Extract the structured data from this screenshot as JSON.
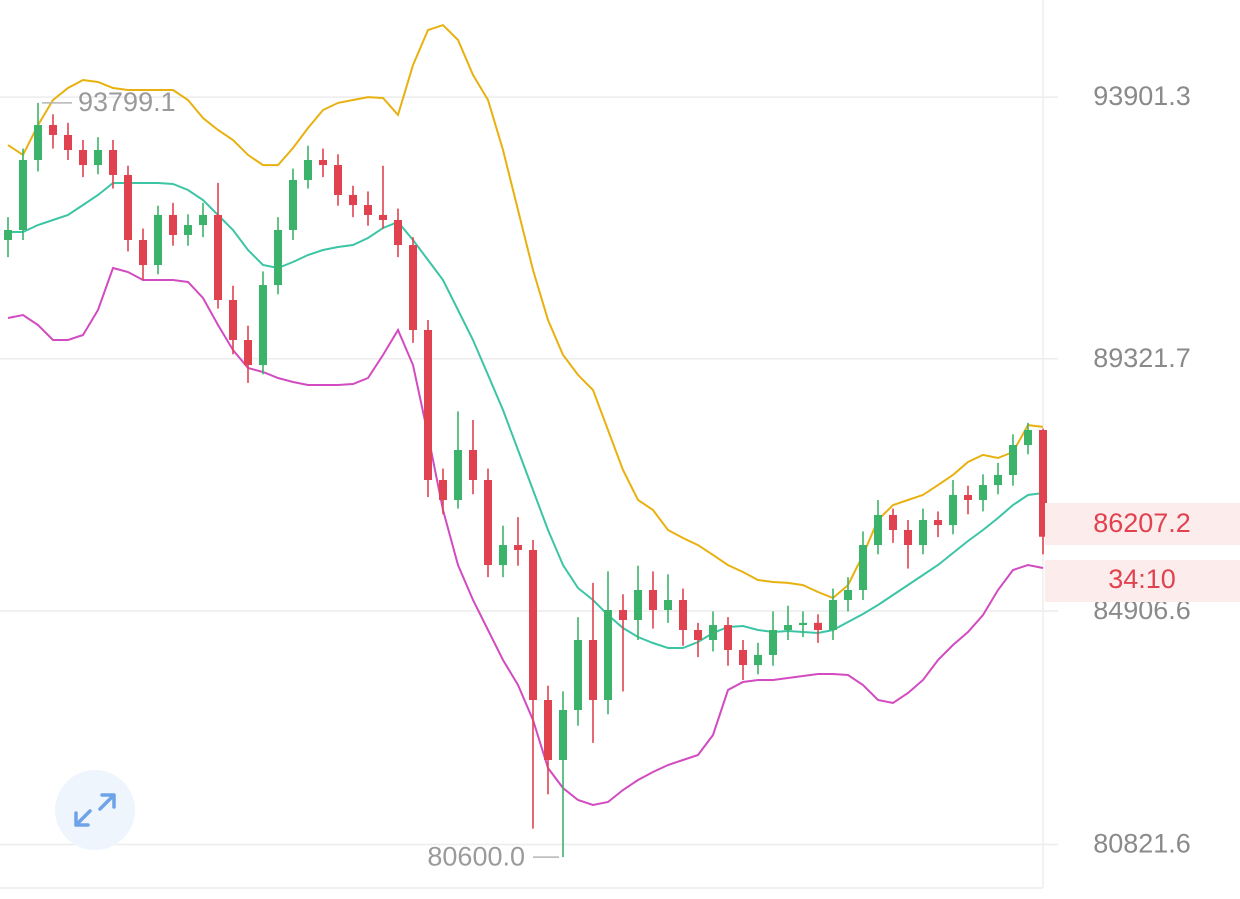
{
  "chart_data": {
    "type": "candlestick",
    "ylim": [
      80200,
      95600
    ],
    "yticks": [
      93901.3,
      89321.7,
      84906.6,
      80821.6
    ],
    "grid": true,
    "up_color": "#3bb36b",
    "down_color": "#e0424f",
    "ohlc": [
      [
        91400,
        91800,
        91100,
        91575
      ],
      [
        91575,
        93000,
        91400,
        92800
      ],
      [
        92800,
        93799.1,
        92600,
        93412
      ],
      [
        93412,
        93600,
        93000,
        93238
      ],
      [
        93238,
        93450,
        92800,
        92975
      ],
      [
        92975,
        93150,
        92500,
        92712
      ],
      [
        92712,
        93200,
        92550,
        92975
      ],
      [
        92975,
        93150,
        92300,
        92538
      ],
      [
        92538,
        92700,
        91200,
        91400
      ],
      [
        91400,
        91600,
        90700,
        90962
      ],
      [
        90962,
        92000,
        90800,
        91838
      ],
      [
        91838,
        92050,
        91300,
        91488
      ],
      [
        91488,
        91850,
        91300,
        91662
      ],
      [
        91662,
        92050,
        91450,
        91838
      ],
      [
        91838,
        92400,
        90200,
        90350
      ],
      [
        90350,
        90600,
        89400,
        89650
      ],
      [
        89650,
        89900,
        88900,
        89212
      ],
      [
        89212,
        90850,
        89050,
        90612
      ],
      [
        90612,
        91800,
        90450,
        91575
      ],
      [
        91575,
        92650,
        91400,
        92450
      ],
      [
        92450,
        93050,
        92300,
        92800
      ],
      [
        92800,
        93000,
        92500,
        92712
      ],
      [
        92712,
        92900,
        92000,
        92188
      ],
      [
        92188,
        92350,
        91800,
        92012
      ],
      [
        92012,
        92250,
        91650,
        91838
      ],
      [
        91838,
        92700,
        91600,
        91750
      ],
      [
        91750,
        91950,
        91100,
        91312
      ],
      [
        91312,
        91450,
        89600,
        89825
      ],
      [
        89825,
        90000,
        86900,
        87200
      ],
      [
        87200,
        87400,
        86600,
        86850
      ],
      [
        86850,
        88400,
        86700,
        87725
      ],
      [
        87725,
        88250,
        86950,
        87200
      ],
      [
        87200,
        87400,
        85500,
        85712
      ],
      [
        85712,
        86400,
        85500,
        86062
      ],
      [
        86062,
        86550,
        85700,
        85975
      ],
      [
        85975,
        86150,
        81100,
        83350
      ],
      [
        83350,
        83600,
        81700,
        82300
      ],
      [
        82300,
        83500,
        80600,
        83175
      ],
      [
        83175,
        84800,
        82900,
        84400
      ],
      [
        84400,
        85400,
        82600,
        83350
      ],
      [
        83350,
        85600,
        83100,
        84925
      ],
      [
        84925,
        85200,
        83500,
        84750
      ],
      [
        84750,
        85700,
        84400,
        85275
      ],
      [
        85275,
        85600,
        84600,
        84925
      ],
      [
        84925,
        85550,
        84700,
        85100
      ],
      [
        85100,
        85300,
        84300,
        84575
      ],
      [
        84575,
        84700,
        84100,
        84400
      ],
      [
        84400,
        84900,
        84200,
        84662
      ],
      [
        84662,
        84800,
        83950,
        84225
      ],
      [
        84225,
        84400,
        83700,
        83962
      ],
      [
        83962,
        84350,
        83800,
        84138
      ],
      [
        84138,
        84900,
        83950,
        84575
      ],
      [
        84575,
        85000,
        84400,
        84662
      ],
      [
        84662,
        84900,
        84450,
        84700
      ],
      [
        84700,
        84850,
        84350,
        84575
      ],
      [
        84575,
        85300,
        84400,
        85100
      ],
      [
        85100,
        85500,
        84900,
        85275
      ],
      [
        85275,
        86300,
        85100,
        86062
      ],
      [
        86062,
        86850,
        85900,
        86588
      ],
      [
        86588,
        86700,
        86100,
        86325
      ],
      [
        86325,
        86500,
        85650,
        86062
      ],
      [
        86062,
        86700,
        85900,
        86500
      ],
      [
        86500,
        86650,
        86200,
        86412
      ],
      [
        86412,
        87200,
        86250,
        86938
      ],
      [
        86938,
        87100,
        86600,
        86850
      ],
      [
        86850,
        87300,
        86650,
        87112
      ],
      [
        87112,
        87500,
        86950,
        87288
      ],
      [
        87288,
        88000,
        87100,
        87812
      ],
      [
        87812,
        88200,
        87650,
        88075
      ],
      [
        88075,
        88100,
        85900,
        86207.2
      ]
    ],
    "bands": [
      {
        "color": "#e8b10f",
        "values": [
          93060,
          92890,
          93410,
          93850,
          94060,
          94200,
          94165,
          94060,
          94025,
          94025,
          94025,
          94025,
          93850,
          93535,
          93325,
          93150,
          92890,
          92710,
          92710,
          93010,
          93360,
          93675,
          93800,
          93850,
          93900,
          93885,
          93590,
          94460,
          95075,
          95160,
          94900,
          94290,
          93850,
          92975,
          91925,
          90875,
          90000,
          89390,
          89040,
          88775,
          88075,
          87375,
          86850,
          86675,
          86325,
          86185,
          86060,
          85890,
          85710,
          85590,
          85450,
          85415,
          85400,
          85360,
          85240,
          85135,
          85360,
          85890,
          86500,
          86760,
          86850,
          86940,
          87110,
          87290,
          87515,
          87640,
          87585,
          87690,
          88160,
          88130
        ]
      },
      {
        "color": "#3cc5a5",
        "values": [
          91540,
          91540,
          91662,
          91750,
          91838,
          92012,
          92188,
          92398,
          92398,
          92398,
          92398,
          92380,
          92275,
          92100,
          91838,
          91575,
          91225,
          90962,
          90910,
          91015,
          91138,
          91225,
          91278,
          91312,
          91435,
          91610,
          91715,
          91400,
          91050,
          90700,
          90175,
          89650,
          89040,
          88425,
          87725,
          87025,
          86325,
          85712,
          85310,
          85100,
          84838,
          84610,
          84452,
          84348,
          84260,
          84260,
          84365,
          84522,
          84628,
          84645,
          84575,
          84540,
          84558,
          84540,
          84522,
          84575,
          84715,
          84855,
          85012,
          85188,
          85362,
          85538,
          85712,
          85922,
          86132,
          86325,
          86535,
          86762,
          86938,
          86972
        ]
      },
      {
        "color": "#d24bc0",
        "values": [
          90035,
          90088,
          89912,
          89650,
          89650,
          89738,
          90175,
          90910,
          90840,
          90700,
          90700,
          90700,
          90665,
          90385,
          89912,
          89475,
          89160,
          89090,
          88985,
          88915,
          88862,
          88862,
          88862,
          88880,
          88985,
          89388,
          89825,
          89212,
          87988,
          86675,
          85712,
          85100,
          84575,
          84050,
          83612,
          83000,
          82160,
          81810,
          81600,
          81512,
          81565,
          81775,
          81950,
          82090,
          82212,
          82300,
          82388,
          82738,
          83525,
          83665,
          83700,
          83700,
          83735,
          83770,
          83805,
          83805,
          83788,
          83612,
          83350,
          83298,
          83472,
          83700,
          84050,
          84312,
          84540,
          84838,
          85275,
          85625,
          85712,
          85660
        ]
      }
    ],
    "low_label": "80600.0",
    "countdown": "34:10"
  }
}
